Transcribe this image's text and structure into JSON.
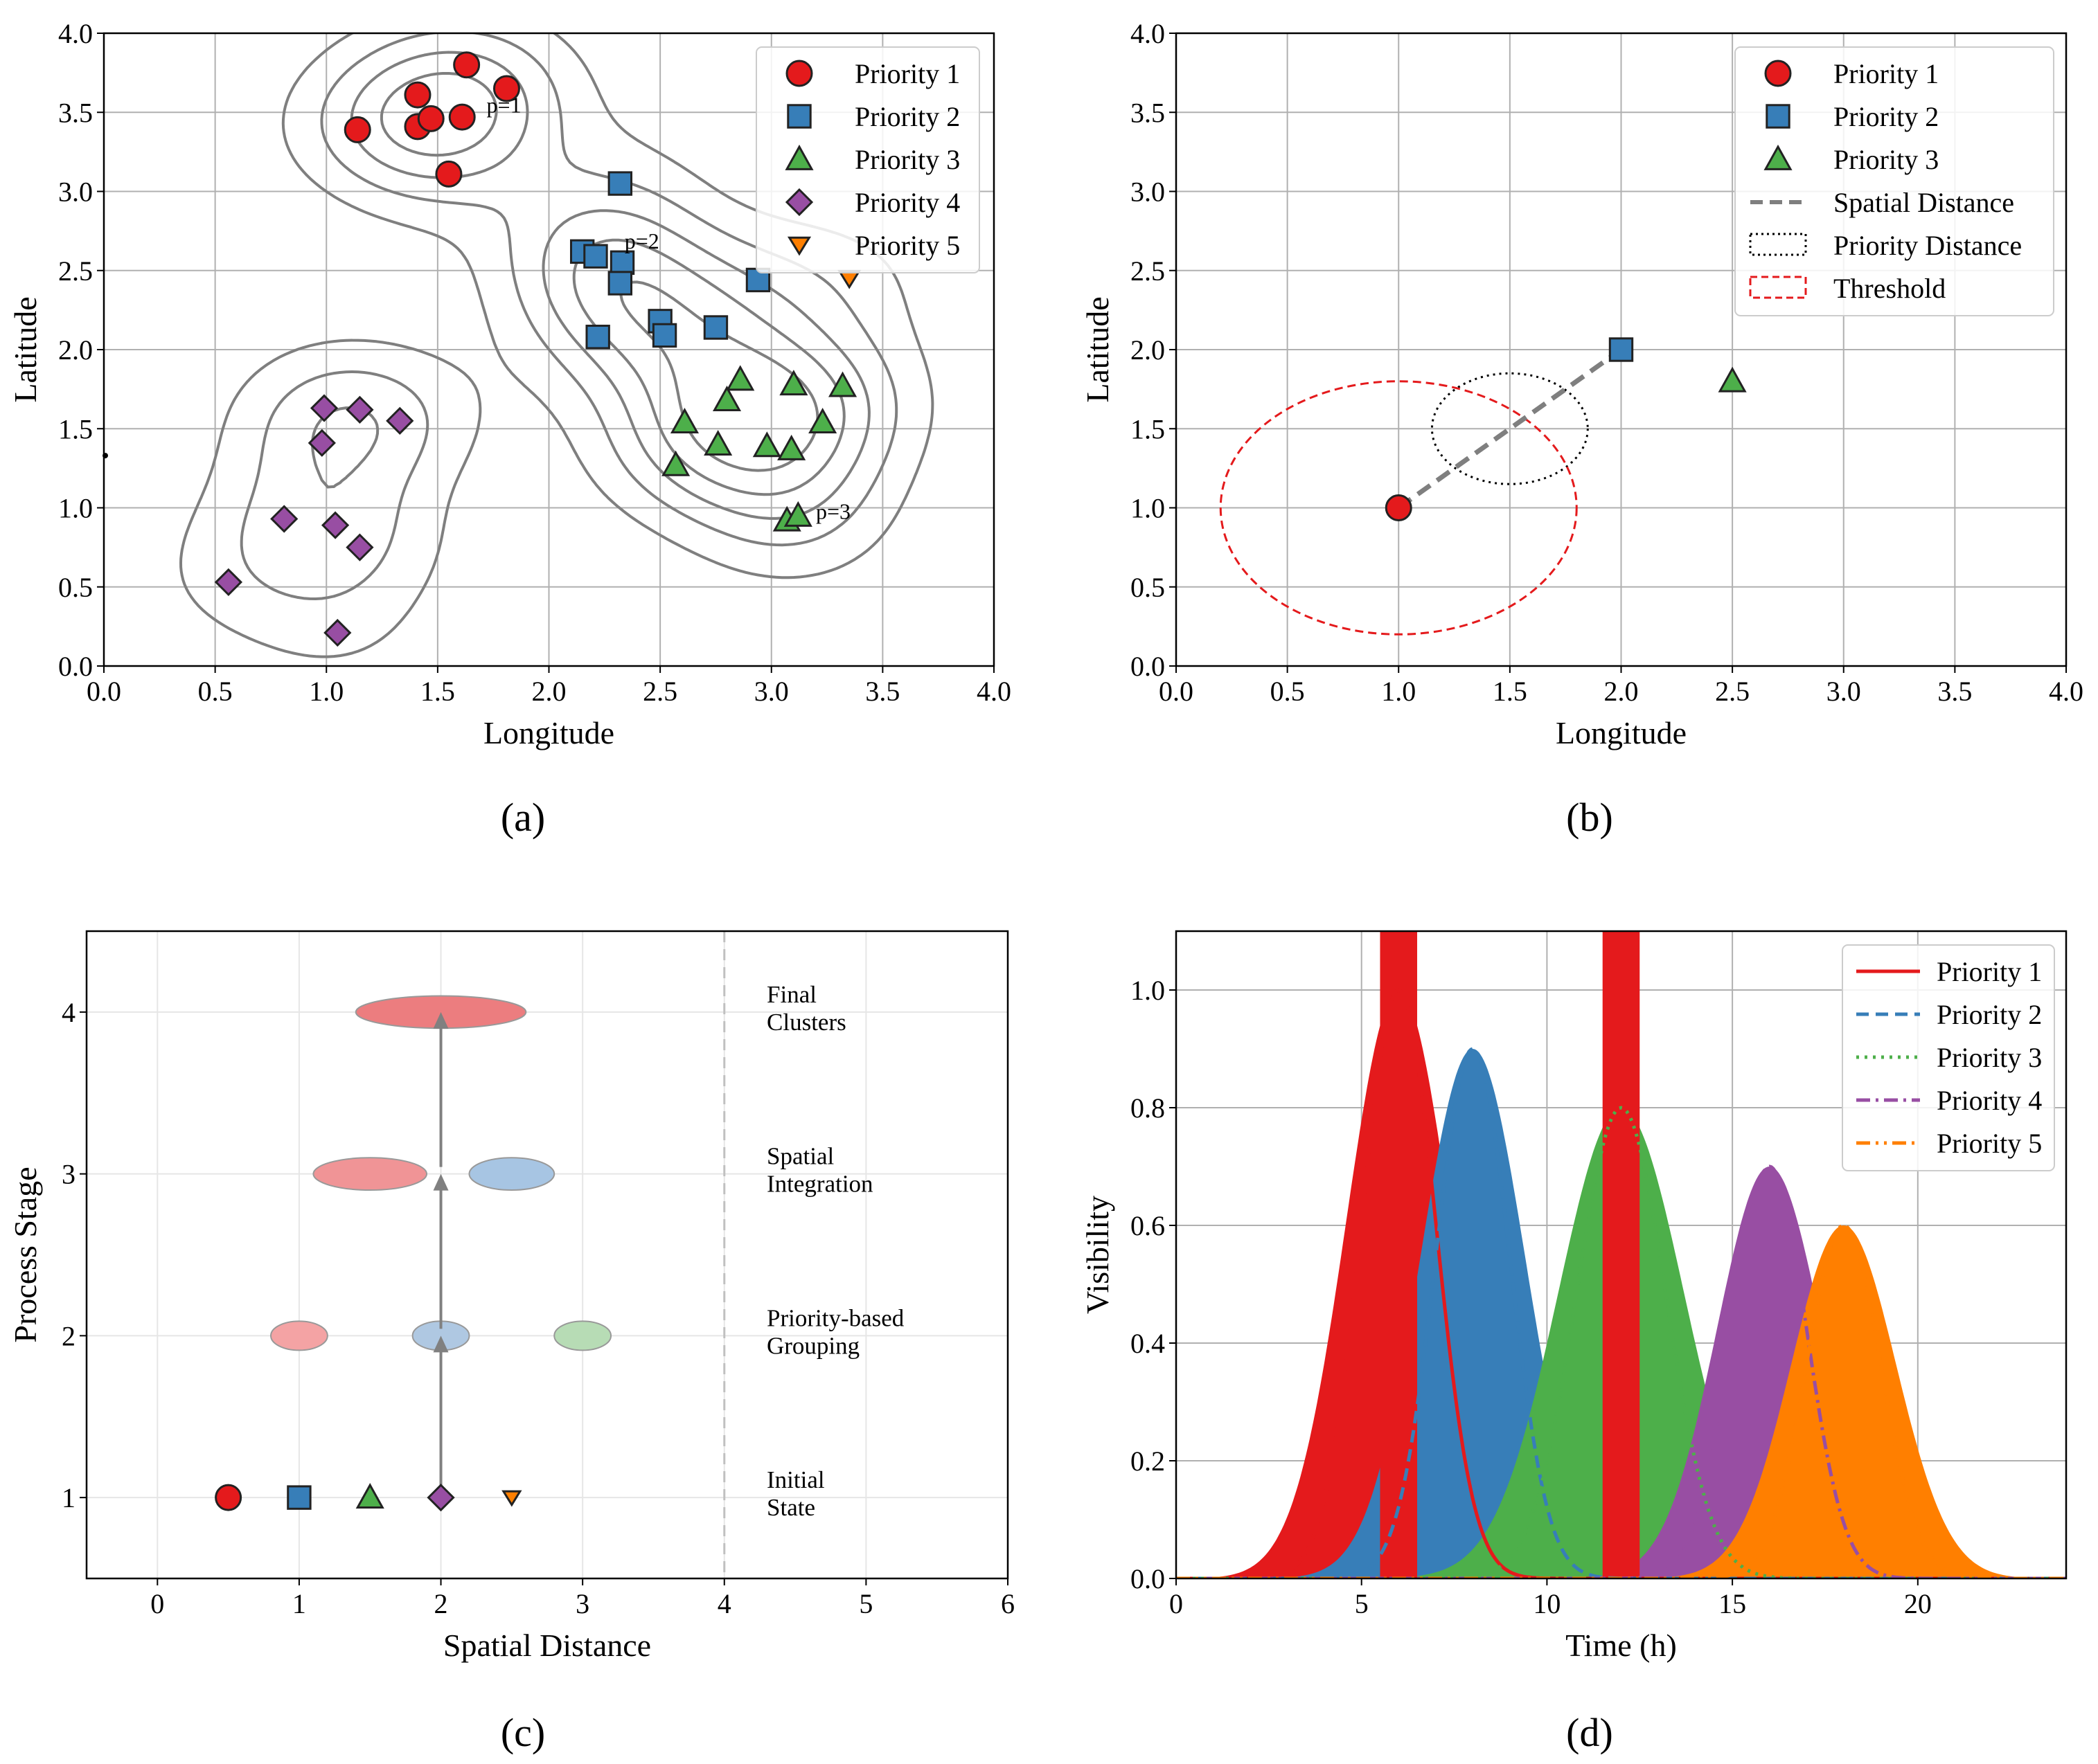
{
  "captions": [
    "(a)",
    "(b)",
    "(c)",
    "(d)"
  ],
  "colors": {
    "p1": "#e41a1c",
    "p2": "#377eb8",
    "p3": "#4daf4a",
    "p4": "#984ea3",
    "p5": "#ff7f00",
    "contour": "#7f7f7f",
    "grid": "#b0b0b0"
  },
  "chart_data": [
    {
      "id": "a",
      "type": "scatter",
      "xlabel": "Longitude",
      "ylabel": "Latitude",
      "xlim": [
        0,
        4
      ],
      "ylim": [
        0,
        4
      ],
      "xticks": [
        "0.0",
        "0.5",
        "1.0",
        "1.5",
        "2.0",
        "2.5",
        "3.0",
        "3.5",
        "4.0"
      ],
      "yticks": [
        "0.0",
        "0.5",
        "1.0",
        "1.5",
        "2.0",
        "2.5",
        "3.0",
        "3.5",
        "4.0"
      ],
      "grid": true,
      "legend_position": "top-right",
      "series": [
        {
          "name": "Priority 1",
          "marker": "circle",
          "color": "#e41a1c",
          "points": [
            [
              1.14,
              3.39
            ],
            [
              1.41,
              3.61
            ],
            [
              1.41,
              3.41
            ],
            [
              1.47,
              3.46
            ],
            [
              1.61,
              3.47
            ],
            [
              1.63,
              3.8
            ],
            [
              1.81,
              3.65
            ],
            [
              1.55,
              3.11
            ]
          ]
        },
        {
          "name": "Priority 2",
          "marker": "square",
          "color": "#377eb8",
          "points": [
            [
              2.32,
              3.05
            ],
            [
              2.15,
              2.62
            ],
            [
              2.21,
              2.59
            ],
            [
              2.33,
              2.55
            ],
            [
              2.32,
              2.42
            ],
            [
              2.94,
              2.44
            ],
            [
              2.22,
              2.08
            ],
            [
              2.5,
              2.18
            ],
            [
              2.52,
              2.09
            ],
            [
              2.75,
              2.14
            ]
          ]
        },
        {
          "name": "Priority 3",
          "marker": "triangle",
          "color": "#4daf4a",
          "points": [
            [
              2.86,
              1.81
            ],
            [
              3.1,
              1.78
            ],
            [
              3.32,
              1.77
            ],
            [
              2.8,
              1.68
            ],
            [
              2.61,
              1.54
            ],
            [
              3.23,
              1.54
            ],
            [
              2.76,
              1.4
            ],
            [
              2.98,
              1.39
            ],
            [
              3.09,
              1.37
            ],
            [
              2.57,
              1.27
            ],
            [
              3.07,
              0.92
            ],
            [
              3.12,
              0.95
            ]
          ]
        },
        {
          "name": "Priority 4",
          "marker": "diamond",
          "color": "#984ea3",
          "points": [
            [
              0.99,
              1.63
            ],
            [
              1.15,
              1.62
            ],
            [
              1.33,
              1.55
            ],
            [
              0.98,
              1.41
            ],
            [
              0.81,
              0.93
            ],
            [
              1.04,
              0.89
            ],
            [
              1.15,
              0.75
            ],
            [
              0.56,
              0.53
            ],
            [
              1.05,
              0.21
            ]
          ]
        },
        {
          "name": "Priority 5",
          "marker": "triangle-down",
          "color": "#ff7f00",
          "points": [
            [
              3.35,
              2.45
            ]
          ]
        }
      ],
      "annotations": [
        {
          "text": "p=1",
          "x": 1.72,
          "y": 3.5
        },
        {
          "text": "p=2",
          "x": 2.34,
          "y": 2.64
        },
        {
          "text": "p=3",
          "x": 3.2,
          "y": 0.93
        }
      ]
    },
    {
      "id": "b",
      "type": "scatter",
      "xlabel": "Longitude",
      "ylabel": "Latitude",
      "xlim": [
        0,
        4
      ],
      "ylim": [
        0,
        4
      ],
      "xticks": [
        "0.0",
        "0.5",
        "1.0",
        "1.5",
        "2.0",
        "2.5",
        "3.0",
        "3.5",
        "4.0"
      ],
      "yticks": [
        "0.0",
        "0.5",
        "1.0",
        "1.5",
        "2.0",
        "2.5",
        "3.0",
        "3.5",
        "4.0"
      ],
      "grid": true,
      "legend_position": "top-right",
      "series": [
        {
          "name": "Priority 1",
          "marker": "circle",
          "color": "#e41a1c",
          "points": [
            [
              1.0,
              1.0
            ]
          ]
        },
        {
          "name": "Priority 2",
          "marker": "square",
          "color": "#377eb8",
          "points": [
            [
              2.0,
              2.0
            ]
          ]
        },
        {
          "name": "Priority 3",
          "marker": "triangle",
          "color": "#4daf4a",
          "points": [
            [
              2.5,
              1.8
            ]
          ]
        }
      ],
      "lines": [
        {
          "name": "Spatial Distance",
          "style": "dashed",
          "from": [
            1.0,
            1.0
          ],
          "to": [
            2.0,
            2.0
          ]
        }
      ],
      "ellipses": [
        {
          "name": "Priority Distance",
          "style": "dotted",
          "cx": 1.5,
          "cy": 1.5,
          "rx": 0.35,
          "ry": 0.35
        },
        {
          "name": "Threshold",
          "style": "dashed-red",
          "cx": 1.0,
          "cy": 1.0,
          "rx": 0.8,
          "ry": 0.8
        }
      ]
    },
    {
      "id": "c",
      "type": "scatter",
      "xlabel": "Spatial Distance",
      "ylabel": "Process Stage",
      "xlim": [
        -0.5,
        6
      ],
      "ylim": [
        0.5,
        4.5
      ],
      "xticks": [
        "0",
        "1",
        "2",
        "3",
        "4",
        "5",
        "6"
      ],
      "yticks": [
        "1",
        "2",
        "3",
        "4"
      ],
      "grid": true,
      "threshold_x": 4,
      "stages": [
        {
          "y": 1,
          "label_lines": [
            "Initial",
            "State"
          ]
        },
        {
          "y": 2,
          "label_lines": [
            "Priority-based",
            "Grouping"
          ]
        },
        {
          "y": 3,
          "label_lines": [
            "Spatial",
            "Integration"
          ]
        },
        {
          "y": 4,
          "label_lines": [
            "Final",
            "Clusters"
          ]
        }
      ],
      "markers": [
        {
          "x": 0.5,
          "y": 1,
          "marker": "circle",
          "color": "#e41a1c"
        },
        {
          "x": 1.0,
          "y": 1,
          "marker": "square",
          "color": "#377eb8"
        },
        {
          "x": 1.5,
          "y": 1,
          "marker": "triangle",
          "color": "#4daf4a"
        },
        {
          "x": 2.0,
          "y": 1,
          "marker": "diamond",
          "color": "#984ea3"
        },
        {
          "x": 2.5,
          "y": 1,
          "marker": "triangle-down",
          "color": "#ff7f00"
        }
      ],
      "ellipses": [
        {
          "cx": 1.0,
          "cy": 2,
          "w": 0.4,
          "h": 0.18,
          "color": "#f4a3a4"
        },
        {
          "cx": 2.0,
          "cy": 2,
          "w": 0.4,
          "h": 0.18,
          "color": "#afc8e2"
        },
        {
          "cx": 3.0,
          "cy": 2,
          "w": 0.4,
          "h": 0.18,
          "color": "#b7dcb5"
        },
        {
          "cx": 1.5,
          "cy": 3,
          "w": 0.8,
          "h": 0.2,
          "color": "#f09496"
        },
        {
          "cx": 2.5,
          "cy": 3,
          "w": 0.6,
          "h": 0.2,
          "color": "#a7c5e3"
        },
        {
          "cx": 2.0,
          "cy": 4,
          "w": 1.2,
          "h": 0.2,
          "color": "#ec7d7f"
        }
      ],
      "arrows": [
        {
          "x": 2.0,
          "from": 1,
          "to": 2
        },
        {
          "x": 2.0,
          "from": 2,
          "to": 3
        },
        {
          "x": 2.0,
          "from": 3,
          "to": 4
        }
      ]
    },
    {
      "id": "d",
      "type": "area",
      "xlabel": "Time (h)",
      "ylabel": "Visibility",
      "xlim": [
        0,
        24
      ],
      "ylim": [
        0,
        1.1
      ],
      "xticks": [
        "0",
        "5",
        "10",
        "15",
        "20"
      ],
      "yticks": [
        "0.0",
        "0.2",
        "0.4",
        "0.6",
        "0.8",
        "1.0"
      ],
      "grid": true,
      "legend_position": "top-right",
      "series": [
        {
          "name": "Priority 1",
          "style": "solid",
          "color": "#e41a1c",
          "peak_time": 6,
          "peak_value": 1.0,
          "spread": 1.0
        },
        {
          "name": "Priority 2",
          "style": "dashed",
          "color": "#377eb8",
          "peak_time": 8,
          "peak_value": 0.9,
          "spread": 1.0
        },
        {
          "name": "Priority 3",
          "style": "dotted",
          "color": "#4daf4a",
          "peak_time": 12,
          "peak_value": 0.8,
          "spread": 1.2
        },
        {
          "name": "Priority 4",
          "style": "dashdot",
          "color": "#984ea3",
          "peak_time": 16,
          "peak_value": 0.7,
          "spread": 1.0
        },
        {
          "name": "Priority 5",
          "style": "dashdotdot",
          "color": "#ff7f00",
          "peak_time": 18,
          "peak_value": 0.6,
          "spread": 1.0
        }
      ],
      "windows": [
        {
          "from": 5.5,
          "to": 6.5,
          "color": "#e41a1c"
        },
        {
          "from": 11.5,
          "to": 12.5,
          "color": "#e41a1c"
        }
      ]
    }
  ]
}
